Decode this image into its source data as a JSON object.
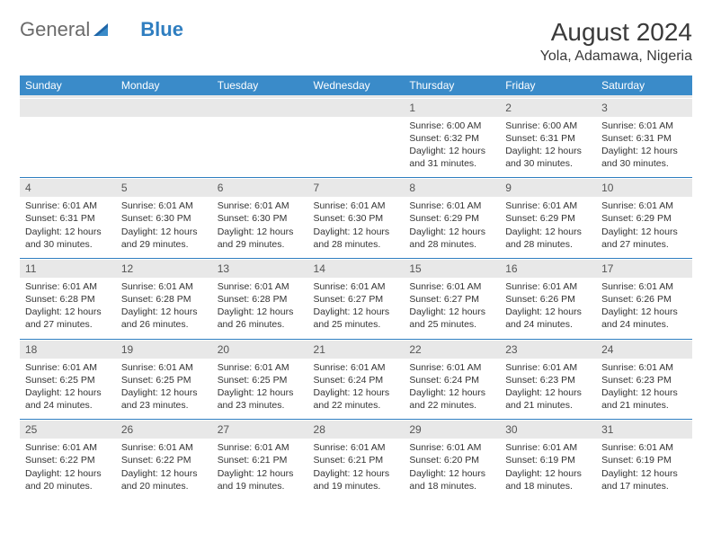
{
  "logo": {
    "part1": "General",
    "part2": "Blue"
  },
  "title": "August 2024",
  "location": "Yola, Adamawa, Nigeria",
  "colors": {
    "header_bg": "#3a8bc9",
    "header_text": "#ffffff",
    "daynum_bg": "#e8e8e8",
    "rule": "#2f7ec0",
    "text": "#333333",
    "logo_gray": "#6b6b6b",
    "logo_blue": "#2f7ec0"
  },
  "dow": [
    "Sunday",
    "Monday",
    "Tuesday",
    "Wednesday",
    "Thursday",
    "Friday",
    "Saturday"
  ],
  "weeks": [
    {
      "nums": [
        "",
        "",
        "",
        "",
        "1",
        "2",
        "3"
      ],
      "cells": [
        null,
        null,
        null,
        null,
        {
          "sunrise": "Sunrise: 6:00 AM",
          "sunset": "Sunset: 6:32 PM",
          "day1": "Daylight: 12 hours",
          "day2": "and 31 minutes."
        },
        {
          "sunrise": "Sunrise: 6:00 AM",
          "sunset": "Sunset: 6:31 PM",
          "day1": "Daylight: 12 hours",
          "day2": "and 30 minutes."
        },
        {
          "sunrise": "Sunrise: 6:01 AM",
          "sunset": "Sunset: 6:31 PM",
          "day1": "Daylight: 12 hours",
          "day2": "and 30 minutes."
        }
      ]
    },
    {
      "nums": [
        "4",
        "5",
        "6",
        "7",
        "8",
        "9",
        "10"
      ],
      "cells": [
        {
          "sunrise": "Sunrise: 6:01 AM",
          "sunset": "Sunset: 6:31 PM",
          "day1": "Daylight: 12 hours",
          "day2": "and 30 minutes."
        },
        {
          "sunrise": "Sunrise: 6:01 AM",
          "sunset": "Sunset: 6:30 PM",
          "day1": "Daylight: 12 hours",
          "day2": "and 29 minutes."
        },
        {
          "sunrise": "Sunrise: 6:01 AM",
          "sunset": "Sunset: 6:30 PM",
          "day1": "Daylight: 12 hours",
          "day2": "and 29 minutes."
        },
        {
          "sunrise": "Sunrise: 6:01 AM",
          "sunset": "Sunset: 6:30 PM",
          "day1": "Daylight: 12 hours",
          "day2": "and 28 minutes."
        },
        {
          "sunrise": "Sunrise: 6:01 AM",
          "sunset": "Sunset: 6:29 PM",
          "day1": "Daylight: 12 hours",
          "day2": "and 28 minutes."
        },
        {
          "sunrise": "Sunrise: 6:01 AM",
          "sunset": "Sunset: 6:29 PM",
          "day1": "Daylight: 12 hours",
          "day2": "and 28 minutes."
        },
        {
          "sunrise": "Sunrise: 6:01 AM",
          "sunset": "Sunset: 6:29 PM",
          "day1": "Daylight: 12 hours",
          "day2": "and 27 minutes."
        }
      ]
    },
    {
      "nums": [
        "11",
        "12",
        "13",
        "14",
        "15",
        "16",
        "17"
      ],
      "cells": [
        {
          "sunrise": "Sunrise: 6:01 AM",
          "sunset": "Sunset: 6:28 PM",
          "day1": "Daylight: 12 hours",
          "day2": "and 27 minutes."
        },
        {
          "sunrise": "Sunrise: 6:01 AM",
          "sunset": "Sunset: 6:28 PM",
          "day1": "Daylight: 12 hours",
          "day2": "and 26 minutes."
        },
        {
          "sunrise": "Sunrise: 6:01 AM",
          "sunset": "Sunset: 6:28 PM",
          "day1": "Daylight: 12 hours",
          "day2": "and 26 minutes."
        },
        {
          "sunrise": "Sunrise: 6:01 AM",
          "sunset": "Sunset: 6:27 PM",
          "day1": "Daylight: 12 hours",
          "day2": "and 25 minutes."
        },
        {
          "sunrise": "Sunrise: 6:01 AM",
          "sunset": "Sunset: 6:27 PM",
          "day1": "Daylight: 12 hours",
          "day2": "and 25 minutes."
        },
        {
          "sunrise": "Sunrise: 6:01 AM",
          "sunset": "Sunset: 6:26 PM",
          "day1": "Daylight: 12 hours",
          "day2": "and 24 minutes."
        },
        {
          "sunrise": "Sunrise: 6:01 AM",
          "sunset": "Sunset: 6:26 PM",
          "day1": "Daylight: 12 hours",
          "day2": "and 24 minutes."
        }
      ]
    },
    {
      "nums": [
        "18",
        "19",
        "20",
        "21",
        "22",
        "23",
        "24"
      ],
      "cells": [
        {
          "sunrise": "Sunrise: 6:01 AM",
          "sunset": "Sunset: 6:25 PM",
          "day1": "Daylight: 12 hours",
          "day2": "and 24 minutes."
        },
        {
          "sunrise": "Sunrise: 6:01 AM",
          "sunset": "Sunset: 6:25 PM",
          "day1": "Daylight: 12 hours",
          "day2": "and 23 minutes."
        },
        {
          "sunrise": "Sunrise: 6:01 AM",
          "sunset": "Sunset: 6:25 PM",
          "day1": "Daylight: 12 hours",
          "day2": "and 23 minutes."
        },
        {
          "sunrise": "Sunrise: 6:01 AM",
          "sunset": "Sunset: 6:24 PM",
          "day1": "Daylight: 12 hours",
          "day2": "and 22 minutes."
        },
        {
          "sunrise": "Sunrise: 6:01 AM",
          "sunset": "Sunset: 6:24 PM",
          "day1": "Daylight: 12 hours",
          "day2": "and 22 minutes."
        },
        {
          "sunrise": "Sunrise: 6:01 AM",
          "sunset": "Sunset: 6:23 PM",
          "day1": "Daylight: 12 hours",
          "day2": "and 21 minutes."
        },
        {
          "sunrise": "Sunrise: 6:01 AM",
          "sunset": "Sunset: 6:23 PM",
          "day1": "Daylight: 12 hours",
          "day2": "and 21 minutes."
        }
      ]
    },
    {
      "nums": [
        "25",
        "26",
        "27",
        "28",
        "29",
        "30",
        "31"
      ],
      "cells": [
        {
          "sunrise": "Sunrise: 6:01 AM",
          "sunset": "Sunset: 6:22 PM",
          "day1": "Daylight: 12 hours",
          "day2": "and 20 minutes."
        },
        {
          "sunrise": "Sunrise: 6:01 AM",
          "sunset": "Sunset: 6:22 PM",
          "day1": "Daylight: 12 hours",
          "day2": "and 20 minutes."
        },
        {
          "sunrise": "Sunrise: 6:01 AM",
          "sunset": "Sunset: 6:21 PM",
          "day1": "Daylight: 12 hours",
          "day2": "and 19 minutes."
        },
        {
          "sunrise": "Sunrise: 6:01 AM",
          "sunset": "Sunset: 6:21 PM",
          "day1": "Daylight: 12 hours",
          "day2": "and 19 minutes."
        },
        {
          "sunrise": "Sunrise: 6:01 AM",
          "sunset": "Sunset: 6:20 PM",
          "day1": "Daylight: 12 hours",
          "day2": "and 18 minutes."
        },
        {
          "sunrise": "Sunrise: 6:01 AM",
          "sunset": "Sunset: 6:19 PM",
          "day1": "Daylight: 12 hours",
          "day2": "and 18 minutes."
        },
        {
          "sunrise": "Sunrise: 6:01 AM",
          "sunset": "Sunset: 6:19 PM",
          "day1": "Daylight: 12 hours",
          "day2": "and 17 minutes."
        }
      ]
    }
  ]
}
